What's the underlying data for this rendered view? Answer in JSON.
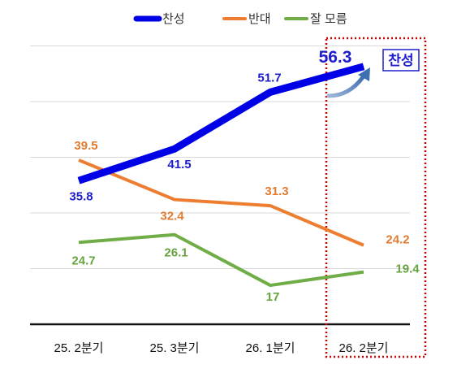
{
  "chart_data": {
    "type": "line",
    "categories": [
      "25. 2분기",
      "25. 3분기",
      "26. 1분기",
      "26. 2분기"
    ],
    "series": [
      {
        "name": "찬성",
        "color": "#0000e6",
        "values": [
          35.8,
          41.5,
          51.7,
          56.3
        ]
      },
      {
        "name": "반대",
        "color": "#ed7d31",
        "values": [
          39.5,
          32.4,
          31.3,
          24.2
        ]
      },
      {
        "name": "잘 모름",
        "color": "#70ad47",
        "values": [
          24.7,
          26.1,
          17,
          19.4
        ]
      }
    ],
    "ylim": [
      10,
      60
    ],
    "grid": true,
    "legend_position": "top-center",
    "highlight": {
      "category": "26. 2분기",
      "label": "찬성",
      "color": "#d00000"
    },
    "value_labels": {
      "찬성": [
        "35.8",
        "41.5",
        "51.7",
        "56.3"
      ],
      "반대": [
        "39.5",
        "32.4",
        "31.3",
        "24.2"
      ],
      "잘 모름": [
        "24.7",
        "26.1",
        "17",
        "19.4"
      ]
    }
  }
}
